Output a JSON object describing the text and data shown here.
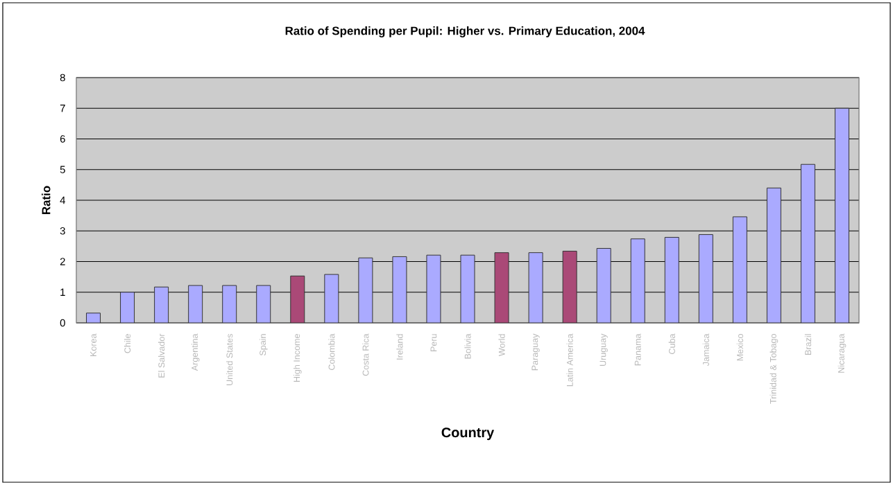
{
  "chart_data": {
    "type": "bar",
    "title": "Ratio of Spending per Pupil: Higher vs. Primary Education, 2004",
    "xlabel": "Country",
    "ylabel": "Ratio",
    "categories": [
      "Korea",
      "Chile",
      "El Salvador",
      "Argentina",
      "United States",
      "Spain",
      "High Income",
      "Colombia",
      "Costa Rica",
      "Ireland",
      "Peru",
      "Bolivia",
      "World",
      "Paraguay",
      "Latin America",
      "Uruguay",
      "Panama",
      "Cuba",
      "Jamaica",
      "Mexico",
      "Trinidad & Tobago",
      "Brazil",
      "Nicaragua"
    ],
    "values": [
      0.32,
      1.0,
      1.17,
      1.22,
      1.22,
      1.22,
      1.53,
      1.58,
      2.12,
      2.16,
      2.21,
      2.21,
      2.29,
      2.29,
      2.34,
      2.43,
      2.74,
      2.79,
      2.88,
      3.46,
      4.4,
      5.17,
      7.0
    ],
    "colors": [
      "#aaaaff",
      "#aaaaff",
      "#aaaaff",
      "#aaaaff",
      "#aaaaff",
      "#aaaaff",
      "#aa4977",
      "#aaaaff",
      "#aaaaff",
      "#aaaaff",
      "#aaaaff",
      "#aaaaff",
      "#aa4977",
      "#aaaaff",
      "#aa4977",
      "#aaaaff",
      "#aaaaff",
      "#aaaaff",
      "#aaaaff",
      "#aaaaff",
      "#aaaaff",
      "#aaaaff",
      "#aaaaff"
    ],
    "ylim": [
      0,
      8
    ],
    "yticks": [
      0,
      1,
      2,
      3,
      4,
      5,
      6,
      7,
      8
    ],
    "grid": "y"
  }
}
